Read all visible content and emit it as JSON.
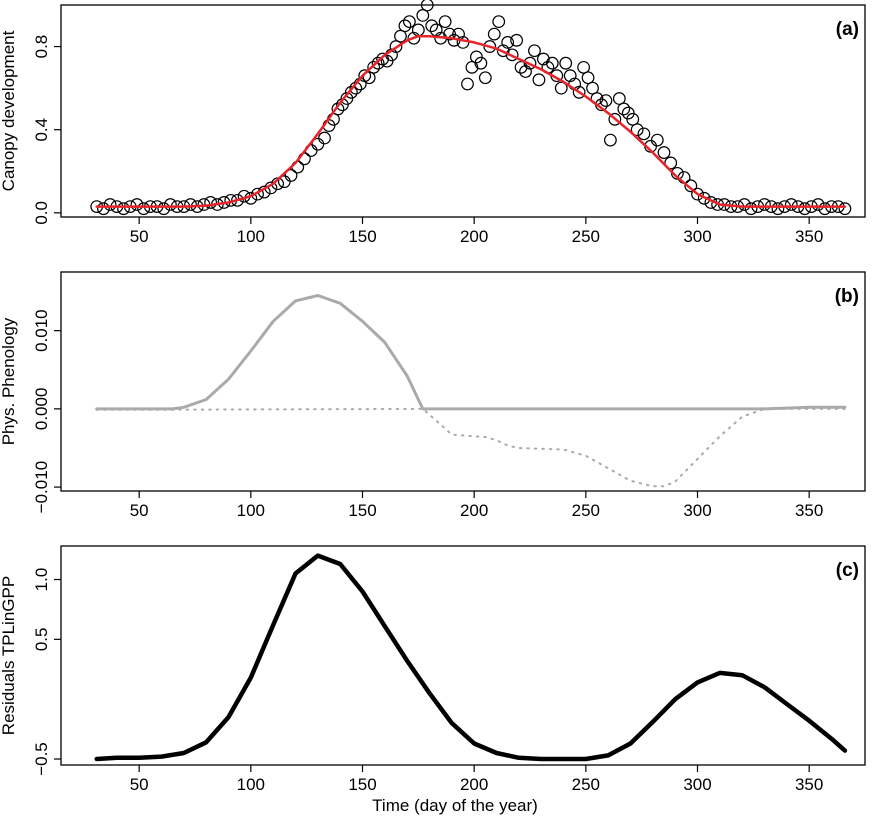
{
  "chart_data": [
    {
      "panel_label": "(a)",
      "type": "scatter",
      "ylabel": "Canopy development",
      "xlim": [
        15,
        375
      ],
      "ylim": [
        -0.02,
        1.0
      ],
      "x_ticks": [
        50,
        100,
        150,
        200,
        250,
        300,
        350
      ],
      "y_ticks": [
        0.0,
        0.4,
        0.8
      ],
      "y_tick_labels": [
        "0.0",
        "0.4",
        "0.8"
      ],
      "series": [
        {
          "kind": "points",
          "style": "open-circle",
          "color": "#000000",
          "x": [
            31,
            34,
            37,
            40,
            43,
            46,
            49,
            52,
            55,
            58,
            61,
            64,
            67,
            70,
            73,
            76,
            79,
            82,
            85,
            88,
            91,
            94,
            97,
            100,
            103,
            106,
            109,
            112,
            115,
            118,
            121,
            124,
            127,
            130,
            133,
            135,
            137,
            139,
            141,
            143,
            145,
            147,
            149,
            151,
            153,
            155,
            157,
            159,
            161,
            163,
            165,
            167,
            169,
            171,
            173,
            175,
            177,
            179,
            181,
            183,
            185,
            187,
            189,
            191,
            193,
            195,
            197,
            199,
            201,
            203,
            205,
            207,
            209,
            211,
            213,
            215,
            217,
            219,
            221,
            223,
            225,
            227,
            229,
            231,
            233,
            235,
            237,
            239,
            241,
            243,
            245,
            247,
            249,
            251,
            253,
            255,
            257,
            259,
            261,
            263,
            265,
            267,
            269,
            271,
            273,
            276,
            279,
            282,
            285,
            288,
            291,
            294,
            297,
            300,
            303,
            306,
            309,
            312,
            315,
            318,
            321,
            324,
            327,
            330,
            333,
            336,
            339,
            342,
            345,
            348,
            351,
            354,
            357,
            360,
            363,
            366
          ],
          "y": [
            0.03,
            0.02,
            0.04,
            0.03,
            0.02,
            0.03,
            0.04,
            0.02,
            0.03,
            0.03,
            0.02,
            0.04,
            0.03,
            0.03,
            0.04,
            0.03,
            0.04,
            0.05,
            0.04,
            0.05,
            0.06,
            0.06,
            0.08,
            0.07,
            0.09,
            0.1,
            0.12,
            0.14,
            0.15,
            0.18,
            0.22,
            0.26,
            0.3,
            0.33,
            0.36,
            0.42,
            0.45,
            0.5,
            0.52,
            0.55,
            0.58,
            0.6,
            0.62,
            0.66,
            0.65,
            0.7,
            0.72,
            0.74,
            0.73,
            0.76,
            0.8,
            0.85,
            0.9,
            0.92,
            0.84,
            0.88,
            0.95,
            1.0,
            0.9,
            0.88,
            0.84,
            0.92,
            0.86,
            0.83,
            0.86,
            0.82,
            0.62,
            0.7,
            0.75,
            0.72,
            0.65,
            0.8,
            0.86,
            0.92,
            0.78,
            0.82,
            0.76,
            0.83,
            0.7,
            0.68,
            0.72,
            0.78,
            0.64,
            0.74,
            0.7,
            0.72,
            0.66,
            0.6,
            0.72,
            0.66,
            0.62,
            0.58,
            0.7,
            0.65,
            0.6,
            0.55,
            0.52,
            0.54,
            0.35,
            0.45,
            0.55,
            0.5,
            0.48,
            0.45,
            0.4,
            0.38,
            0.32,
            0.35,
            0.29,
            0.24,
            0.19,
            0.17,
            0.13,
            0.09,
            0.07,
            0.05,
            0.04,
            0.04,
            0.03,
            0.03,
            0.04,
            0.02,
            0.03,
            0.04,
            0.03,
            0.02,
            0.03,
            0.04,
            0.03,
            0.02,
            0.03,
            0.04,
            0.02,
            0.03,
            0.03,
            0.02
          ]
        },
        {
          "kind": "line",
          "color": "#e8242a",
          "x": [
            31,
            40,
            50,
            60,
            70,
            80,
            90,
            100,
            110,
            120,
            130,
            140,
            150,
            160,
            170,
            175,
            180,
            190,
            200,
            210,
            220,
            230,
            240,
            250,
            260,
            270,
            280,
            290,
            300,
            310,
            320,
            330,
            340,
            350,
            360,
            366
          ],
          "y": [
            0.03,
            0.03,
            0.03,
            0.03,
            0.03,
            0.035,
            0.05,
            0.08,
            0.14,
            0.24,
            0.38,
            0.53,
            0.66,
            0.76,
            0.83,
            0.85,
            0.85,
            0.84,
            0.82,
            0.79,
            0.74,
            0.69,
            0.63,
            0.56,
            0.48,
            0.39,
            0.29,
            0.18,
            0.09,
            0.04,
            0.03,
            0.03,
            0.03,
            0.03,
            0.03,
            0.03
          ]
        }
      ]
    },
    {
      "panel_label": "(b)",
      "type": "line",
      "ylabel": "Phys. Phenology",
      "xlim": [
        15,
        375
      ],
      "ylim": [
        -0.0105,
        0.0175
      ],
      "x_ticks": [
        50,
        100,
        150,
        200,
        250,
        300,
        350
      ],
      "y_ticks": [
        -0.01,
        0.0,
        0.01
      ],
      "y_tick_labels": [
        "−0.010",
        "0.000",
        "0.010"
      ],
      "series": [
        {
          "kind": "line",
          "style": "solid",
          "color": "#aaaaaa",
          "x": [
            31,
            50,
            65,
            70,
            80,
            90,
            100,
            110,
            120,
            130,
            140,
            150,
            160,
            170,
            177,
            190,
            220,
            250,
            280,
            300,
            330,
            340,
            350,
            360,
            366
          ],
          "y": [
            0.0,
            0.0,
            0.0,
            0.0002,
            0.0012,
            0.0038,
            0.0074,
            0.0112,
            0.0138,
            0.0145,
            0.0135,
            0.0112,
            0.0085,
            0.0042,
            0.0,
            0.0,
            0.0,
            0.0,
            0.0,
            0.0,
            0.0,
            0.0001,
            0.0002,
            0.0002,
            0.0002
          ]
        },
        {
          "kind": "line",
          "style": "dotted",
          "color": "#aaaaaa",
          "x": [
            31,
            50,
            65,
            177,
            185,
            190,
            200,
            205,
            210,
            215,
            220,
            230,
            240,
            250,
            260,
            270,
            280,
            285,
            290,
            300,
            310,
            320,
            330,
            340,
            366
          ],
          "y": [
            -0.0001,
            -0.0001,
            -0.0001,
            0.0,
            -0.002,
            -0.0033,
            -0.0035,
            -0.0036,
            -0.004,
            -0.0047,
            -0.005,
            -0.0051,
            -0.0052,
            -0.006,
            -0.0076,
            -0.0092,
            -0.0099,
            -0.0099,
            -0.0093,
            -0.0064,
            -0.0035,
            -0.001,
            0.0,
            0.0,
            0.0
          ]
        }
      ]
    },
    {
      "panel_label": "(c)",
      "type": "line",
      "ylabel": "Residuals TPLinGPP",
      "xlabel": "Time (day of the year)",
      "xlim": [
        15,
        375
      ],
      "ylim": [
        -0.55,
        1.28
      ],
      "x_ticks": [
        50,
        100,
        150,
        200,
        250,
        300,
        350
      ],
      "y_ticks": [
        -0.5,
        0.5,
        1.0
      ],
      "y_tick_labels": [
        "−0.5",
        "0.5",
        "1.0"
      ],
      "series": [
        {
          "kind": "line",
          "style": "solid",
          "color": "#000000",
          "x": [
            31,
            40,
            50,
            60,
            70,
            80,
            90,
            100,
            110,
            120,
            130,
            140,
            150,
            160,
            170,
            180,
            190,
            200,
            210,
            220,
            230,
            240,
            250,
            260,
            270,
            280,
            290,
            300,
            310,
            320,
            330,
            340,
            350,
            360,
            366
          ],
          "y": [
            -0.5,
            -0.49,
            -0.49,
            -0.48,
            -0.45,
            -0.36,
            -0.15,
            0.18,
            0.62,
            1.05,
            1.2,
            1.13,
            0.9,
            0.61,
            0.32,
            0.05,
            -0.2,
            -0.37,
            -0.45,
            -0.49,
            -0.5,
            -0.5,
            -0.5,
            -0.47,
            -0.37,
            -0.19,
            0.0,
            0.14,
            0.22,
            0.2,
            0.1,
            -0.04,
            -0.18,
            -0.33,
            -0.43
          ]
        }
      ]
    }
  ]
}
